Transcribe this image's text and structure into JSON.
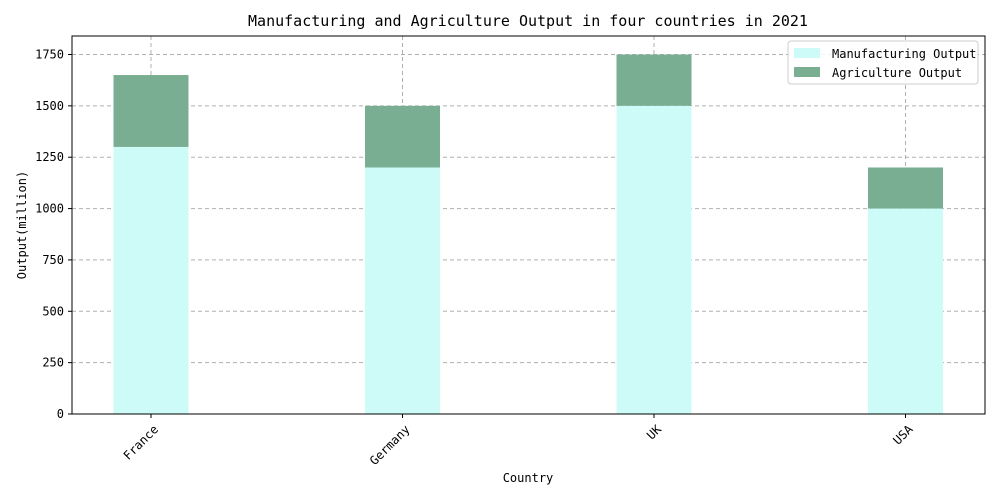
{
  "chart_data": {
    "type": "bar",
    "stacked": true,
    "title": "Manufacturing and Agriculture Output in four countries in 2021",
    "xlabel": "Country",
    "ylabel": "Output(million)",
    "categories": [
      "France",
      "Germany",
      "UK",
      "USA"
    ],
    "series": [
      {
        "name": "Manufacturing Output",
        "values": [
          1300,
          1200,
          1500,
          1000
        ],
        "color": "#ccfbf8"
      },
      {
        "name": "Agriculture Output",
        "values": [
          350,
          300,
          250,
          200
        ],
        "color": "#7aae93"
      }
    ],
    "ylim": [
      0,
      1840
    ],
    "yticks": [
      0,
      250,
      500,
      750,
      1000,
      1250,
      1500,
      1750
    ],
    "grid": true,
    "legend_position": "top-right"
  }
}
